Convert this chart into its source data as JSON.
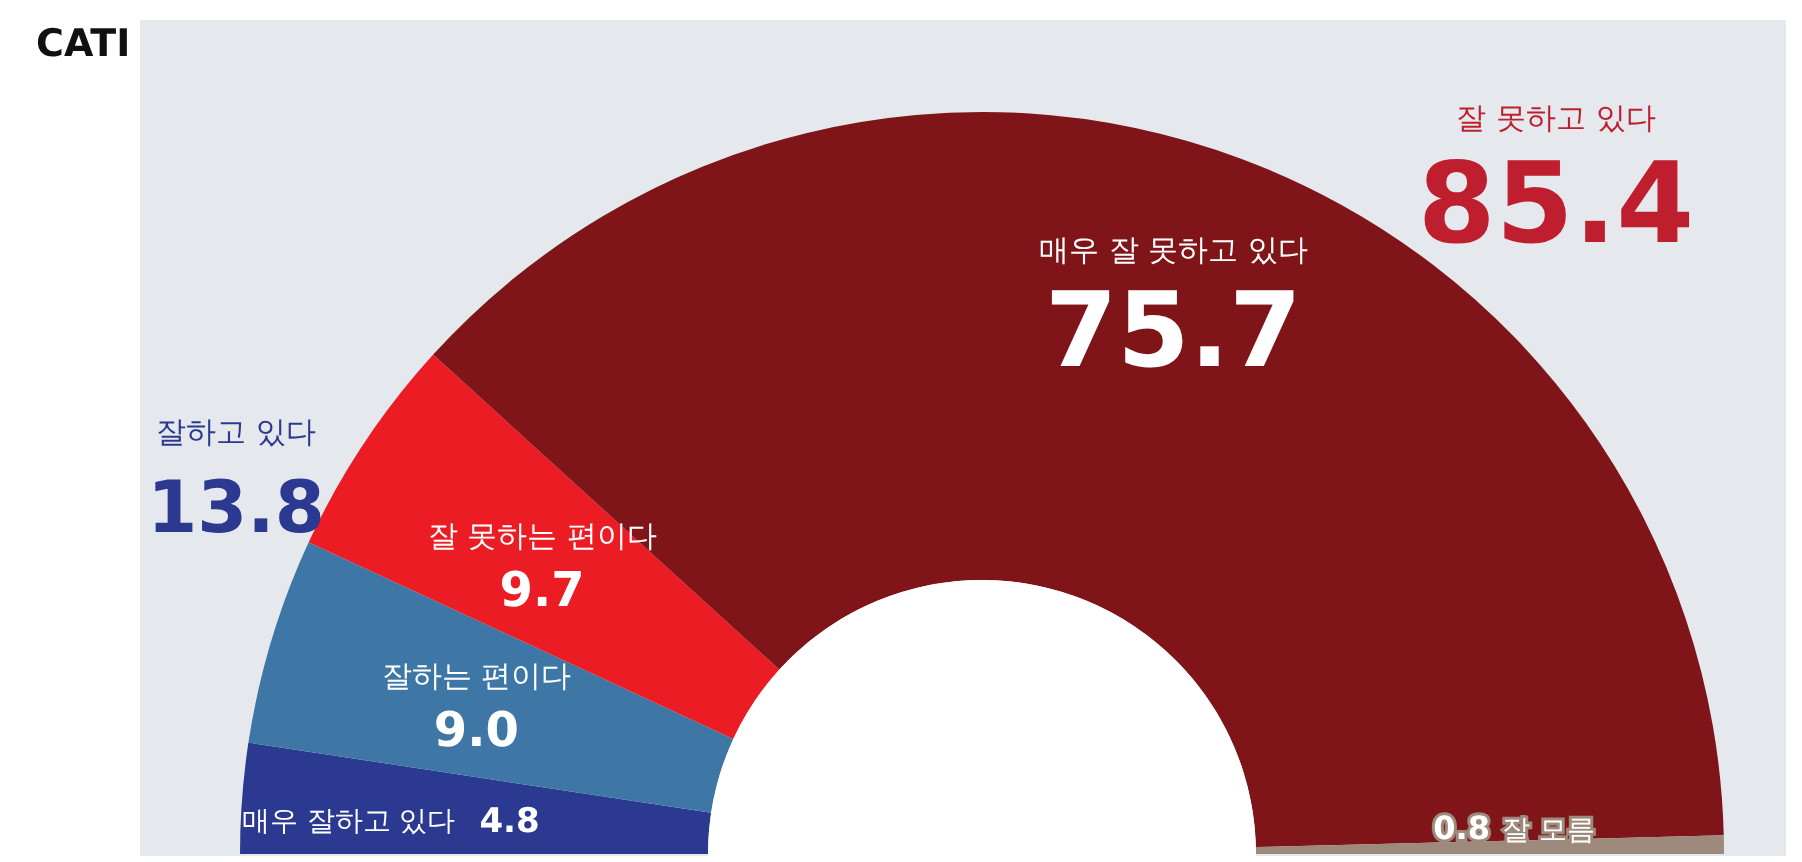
{
  "chart_data": {
    "type": "donut",
    "title": "CATI",
    "categories": [
      "매우 잘하고 있다",
      "잘하는 편이다",
      "잘 못하는 편이다",
      "매우 잘 못하고 있다",
      "잘 모름"
    ],
    "values": [
      4.8,
      9.0,
      9.7,
      75.7,
      0.8
    ],
    "colors": [
      "#2b3990",
      "#3e77a6",
      "#ec1c24",
      "#7f1519",
      "#9e8a7c"
    ],
    "value_labels": [
      "4.8",
      "9.0",
      "9.7",
      "75.7",
      "0.8"
    ],
    "annotations": [
      "잘하고 있다",
      "13.8",
      "잘 못하고 있다",
      "85.4"
    ]
  }
}
